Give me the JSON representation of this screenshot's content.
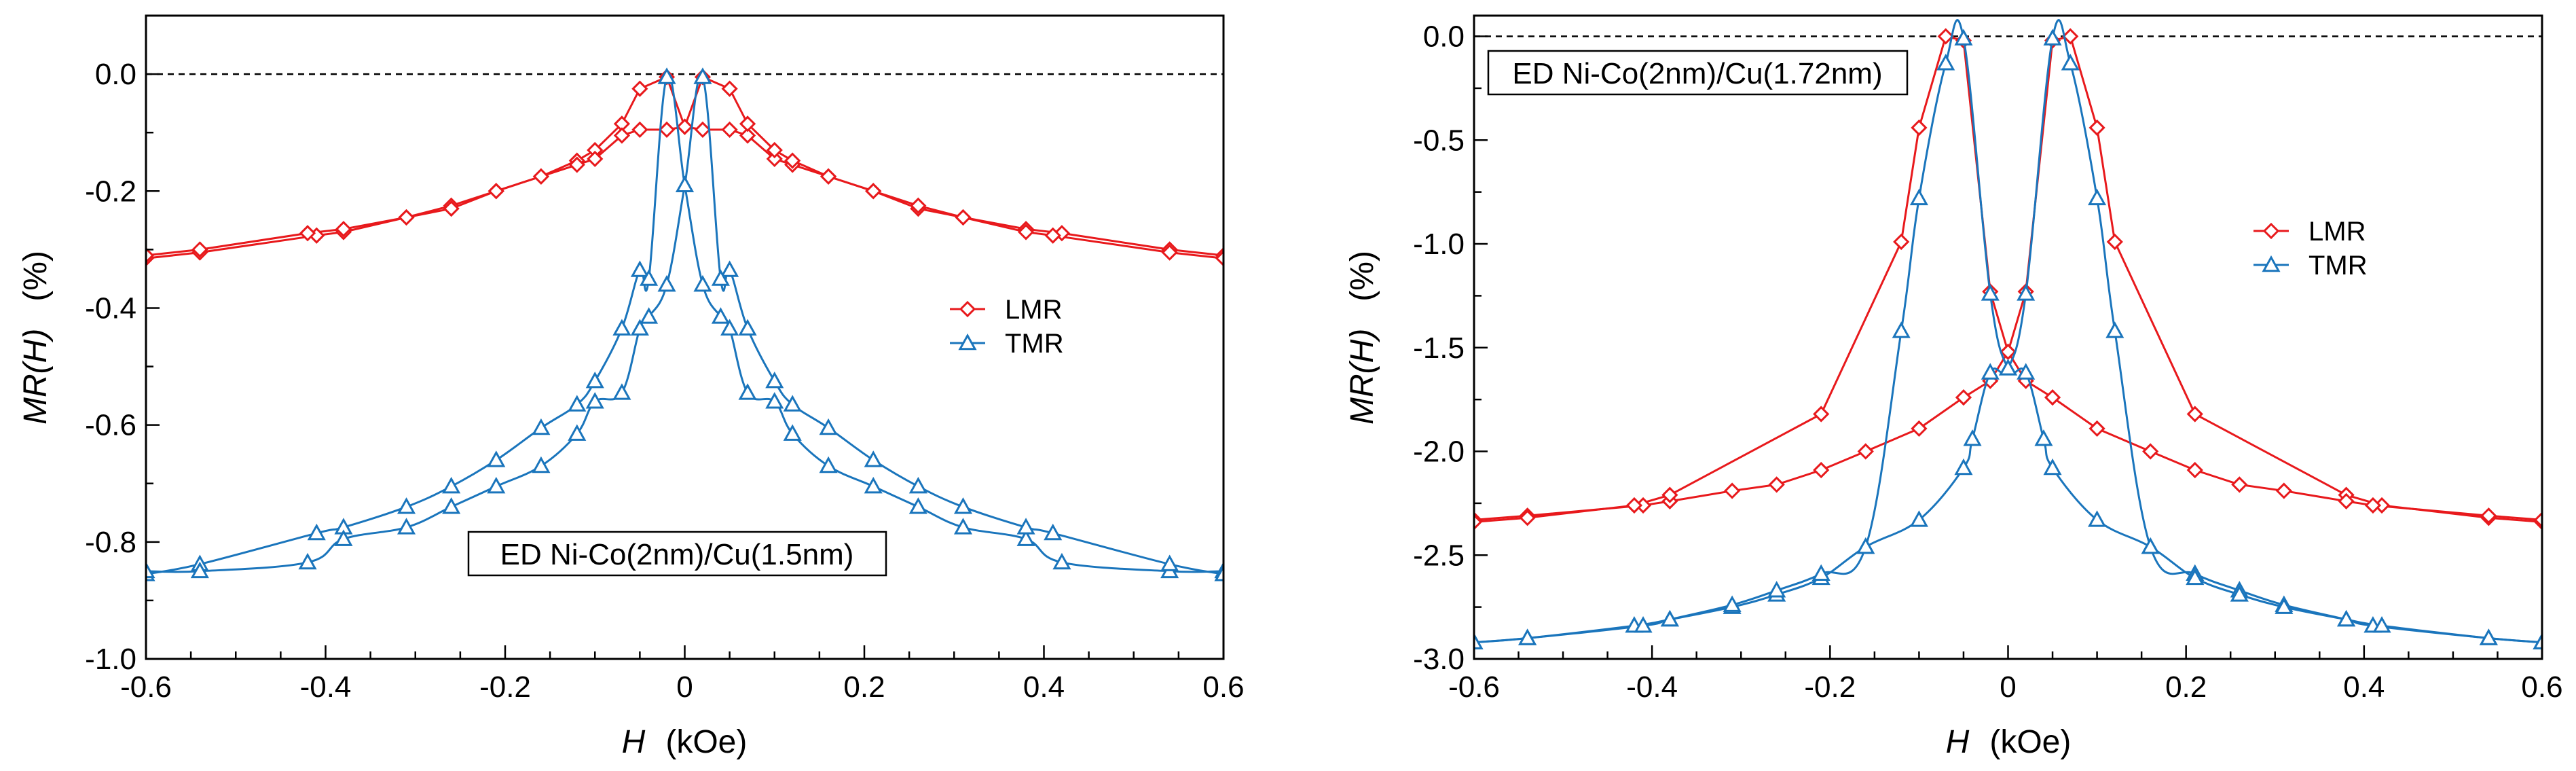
{
  "chart_data": [
    {
      "type": "line",
      "panel": "left",
      "title": "",
      "annotation": "ED Ni-Co(2nm)/Cu(1.5nm)",
      "xlabel": {
        "var": "H",
        "unit": "(kOe)"
      },
      "ylabel": {
        "var": "MR(H)",
        "unit": "(%)"
      },
      "xlim": [
        -0.6,
        0.6
      ],
      "ylim": [
        -1.0,
        0.1
      ],
      "xticks": [
        "-0.6",
        "-0.4",
        "-0.2",
        "0",
        "0.2",
        "0.4",
        "0.6"
      ],
      "yticks": [
        "-1.0",
        "-0.8",
        "-0.6",
        "-0.4",
        "-0.2",
        "0.0"
      ],
      "x_tick_values": [
        -0.6,
        -0.4,
        -0.2,
        0,
        0.2,
        0.4,
        0.6
      ],
      "y_tick_values": [
        -1.0,
        -0.8,
        -0.6,
        -0.4,
        -0.2,
        0.0
      ],
      "legend": {
        "position": "center-right"
      },
      "reference_line": {
        "y": 0.0,
        "style": "dashed"
      },
      "series": [
        {
          "name": "LMR",
          "color": "#e8191c",
          "marker": "diamond",
          "style": "line",
          "branches": [
            {
              "x": [
                -0.6,
                -0.54,
                -0.41,
                -0.38,
                -0.31,
                -0.26,
                -0.21,
                -0.16,
                -0.12,
                -0.1,
                -0.07,
                -0.05,
                -0.02,
                0.0,
                0.02,
                0.05,
                0.07,
                0.1,
                0.12,
                0.16,
                0.21,
                0.26,
                0.31,
                0.38,
                0.42,
                0.54,
                0.6
              ],
              "y": [
                -0.315,
                -0.305,
                -0.276,
                -0.27,
                -0.245,
                -0.225,
                -0.2,
                -0.175,
                -0.148,
                -0.13,
                -0.085,
                -0.025,
                -0.005,
                -0.09,
                -0.095,
                -0.095,
                -0.105,
                -0.145,
                -0.155,
                -0.175,
                -0.2,
                -0.23,
                -0.245,
                -0.265,
                -0.272,
                -0.3,
                -0.31
              ]
            },
            {
              "x": [
                0.6,
                0.54,
                0.41,
                0.38,
                0.31,
                0.26,
                0.21,
                0.16,
                0.12,
                0.1,
                0.07,
                0.05,
                0.02,
                0.0,
                -0.02,
                -0.05,
                -0.07,
                -0.1,
                -0.12,
                -0.16,
                -0.21,
                -0.26,
                -0.31,
                -0.38,
                -0.42,
                -0.54,
                -0.6
              ],
              "y": [
                -0.315,
                -0.305,
                -0.276,
                -0.27,
                -0.245,
                -0.225,
                -0.2,
                -0.175,
                -0.148,
                -0.13,
                -0.085,
                -0.025,
                -0.005,
                -0.09,
                -0.095,
                -0.095,
                -0.105,
                -0.145,
                -0.155,
                -0.175,
                -0.2,
                -0.23,
                -0.245,
                -0.265,
                -0.272,
                -0.3,
                -0.31
              ]
            }
          ]
        },
        {
          "name": "TMR",
          "color": "#1a75bc",
          "marker": "triangle",
          "style": "smooth",
          "branches": [
            {
              "x": [
                -0.6,
                -0.54,
                -0.41,
                -0.38,
                -0.31,
                -0.26,
                -0.21,
                -0.16,
                -0.12,
                -0.1,
                -0.07,
                -0.05,
                -0.04,
                -0.02,
                0.0,
                0.02,
                0.04,
                0.05,
                0.07,
                0.1,
                0.12,
                0.16,
                0.21,
                0.26,
                0.31,
                0.38,
                0.42,
                0.54,
                0.6
              ],
              "y": [
                -0.855,
                -0.838,
                -0.785,
                -0.775,
                -0.74,
                -0.705,
                -0.66,
                -0.605,
                -0.565,
                -0.525,
                -0.435,
                -0.335,
                -0.35,
                -0.005,
                -0.19,
                -0.36,
                -0.415,
                -0.435,
                -0.545,
                -0.56,
                -0.615,
                -0.67,
                -0.705,
                -0.74,
                -0.775,
                -0.795,
                -0.835,
                -0.85,
                -0.85
              ]
            },
            {
              "x": [
                0.6,
                0.54,
                0.41,
                0.38,
                0.31,
                0.26,
                0.21,
                0.16,
                0.12,
                0.1,
                0.07,
                0.05,
                0.04,
                0.02,
                0.0,
                -0.02,
                -0.04,
                -0.05,
                -0.07,
                -0.1,
                -0.12,
                -0.16,
                -0.21,
                -0.26,
                -0.31,
                -0.38,
                -0.42,
                -0.54,
                -0.6
              ],
              "y": [
                -0.855,
                -0.838,
                -0.785,
                -0.775,
                -0.74,
                -0.705,
                -0.66,
                -0.605,
                -0.565,
                -0.525,
                -0.435,
                -0.335,
                -0.35,
                -0.005,
                -0.19,
                -0.36,
                -0.415,
                -0.435,
                -0.545,
                -0.56,
                -0.615,
                -0.67,
                -0.705,
                -0.74,
                -0.775,
                -0.795,
                -0.835,
                -0.85,
                -0.85
              ]
            }
          ]
        }
      ]
    },
    {
      "type": "line",
      "panel": "right",
      "title": "",
      "annotation": "ED Ni-Co(2nm)/Cu(1.72nm)",
      "xlabel": {
        "var": "H",
        "unit": "(kOe)"
      },
      "ylabel": {
        "var": "MR(H)",
        "unit": "(%)"
      },
      "xlim": [
        -0.6,
        0.6
      ],
      "ylim": [
        -3.0,
        0.1
      ],
      "xticks": [
        "-0.6",
        "-0.4",
        "-0.2",
        "0",
        "0.2",
        "0.4",
        "0.6"
      ],
      "yticks": [
        "-3.0",
        "-2.5",
        "-2.0",
        "-1.5",
        "-1.0",
        "-0.5",
        "0.0"
      ],
      "x_tick_values": [
        -0.6,
        -0.4,
        -0.2,
        0,
        0.2,
        0.4,
        0.6
      ],
      "y_tick_values": [
        -3.0,
        -2.5,
        -2.0,
        -1.5,
        -1.0,
        -0.5,
        0.0
      ],
      "legend": {
        "position": "center-right"
      },
      "reference_line": {
        "y": 0.0,
        "style": "dashed"
      },
      "series": [
        {
          "name": "LMR",
          "color": "#e8191c",
          "marker": "diamond",
          "style": "line",
          "branches": [
            {
              "x": [
                -0.6,
                -0.54,
                -0.41,
                -0.38,
                -0.31,
                -0.26,
                -0.21,
                -0.16,
                -0.1,
                -0.05,
                -0.02,
                0.0,
                0.02,
                0.05,
                0.07,
                0.1,
                0.12,
                0.21,
                0.38,
                0.42,
                0.54,
                0.6
              ],
              "y": [
                -2.33,
                -2.31,
                -2.26,
                -2.24,
                -2.19,
                -2.16,
                -2.09,
                -2.0,
                -1.89,
                -1.74,
                -1.66,
                -1.52,
                -1.23,
                -0.02,
                0.0,
                -0.44,
                -0.99,
                -1.82,
                -2.21,
                -2.26,
                -2.32,
                -2.34
              ]
            },
            {
              "x": [
                0.6,
                0.54,
                0.41,
                0.38,
                0.31,
                0.26,
                0.21,
                0.16,
                0.1,
                0.05,
                0.02,
                0.0,
                -0.02,
                -0.05,
                -0.07,
                -0.1,
                -0.12,
                -0.21,
                -0.38,
                -0.42,
                -0.54,
                -0.6
              ],
              "y": [
                -2.33,
                -2.31,
                -2.26,
                -2.24,
                -2.19,
                -2.16,
                -2.09,
                -2.0,
                -1.89,
                -1.74,
                -1.66,
                -1.52,
                -1.23,
                -0.02,
                0.0,
                -0.44,
                -0.99,
                -1.82,
                -2.21,
                -2.26,
                -2.32,
                -2.34
              ]
            }
          ]
        },
        {
          "name": "TMR",
          "color": "#1a75bc",
          "marker": "triangle",
          "style": "smooth",
          "branches": [
            {
              "x": [
                -0.6,
                -0.54,
                -0.42,
                -0.38,
                -0.31,
                -0.26,
                -0.21,
                -0.16,
                -0.1,
                -0.05,
                -0.04,
                -0.02,
                0.0,
                0.02,
                0.05,
                0.07,
                0.1,
                0.12,
                0.16,
                0.21,
                0.26,
                0.31,
                0.38,
                0.41,
                0.54,
                0.6
              ],
              "y": [
                -2.92,
                -2.9,
                -2.84,
                -2.81,
                -2.75,
                -2.69,
                -2.61,
                -2.46,
                -2.33,
                -2.08,
                -1.94,
                -1.62,
                -1.6,
                -1.24,
                -0.01,
                -0.13,
                -0.78,
                -1.42,
                -2.46,
                -2.59,
                -2.67,
                -2.74,
                -2.81,
                -2.84,
                -2.9,
                -2.92
              ]
            },
            {
              "x": [
                0.6,
                0.54,
                0.42,
                0.38,
                0.31,
                0.26,
                0.21,
                0.16,
                0.1,
                0.05,
                0.04,
                0.02,
                0.0,
                -0.02,
                -0.05,
                -0.07,
                -0.1,
                -0.12,
                -0.16,
                -0.21,
                -0.26,
                -0.31,
                -0.38,
                -0.41,
                -0.54,
                -0.6
              ],
              "y": [
                -2.92,
                -2.9,
                -2.84,
                -2.81,
                -2.75,
                -2.69,
                -2.61,
                -2.46,
                -2.33,
                -2.08,
                -1.94,
                -1.62,
                -1.6,
                -1.24,
                -0.01,
                -0.13,
                -0.78,
                -1.42,
                -2.46,
                -2.59,
                -2.67,
                -2.74,
                -2.81,
                -2.84,
                -2.9,
                -2.92
              ]
            }
          ]
        }
      ]
    }
  ]
}
